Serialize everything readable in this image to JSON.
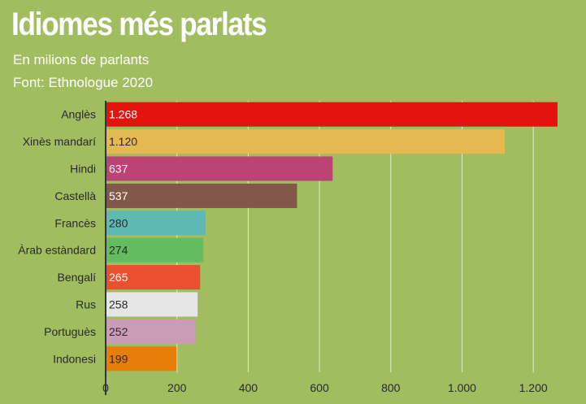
{
  "header": {
    "title": "Idiomes més parlats",
    "subtitle": "En milions de parlants",
    "source": "Font: Ethnologue 2020"
  },
  "chart_data": {
    "type": "bar",
    "orientation": "horizontal",
    "title": "Idiomes més parlats",
    "subtitle": "En milions de parlants",
    "xlabel": "",
    "ylabel": "",
    "xlim": [
      0,
      1300
    ],
    "xticks": [
      0,
      200,
      400,
      600,
      800,
      1000,
      1200
    ],
    "xtick_labels": [
      "0",
      "200",
      "400",
      "600",
      "800",
      "1.000",
      "1.200"
    ],
    "grid": true,
    "categories": [
      "Anglès",
      "Xinès mandarí",
      "Hindi",
      "Castellà",
      "Francès",
      "Àrab estàndard",
      "Bengalí",
      "Rus",
      "Portuguès",
      "Indonesi"
    ],
    "values": [
      1268,
      1120,
      637,
      537,
      280,
      274,
      265,
      258,
      252,
      199
    ],
    "value_labels": [
      "1.268",
      "1.120",
      "637",
      "537",
      "280",
      "274",
      "265",
      "258",
      "252",
      "199"
    ],
    "colors": [
      "#e3140e",
      "#e4b951",
      "#bc4475",
      "#82584a",
      "#5fb9b5",
      "#65bb60",
      "#e9502f",
      "#e6e6e6",
      "#cb9cb8",
      "#e87e07"
    ],
    "label_colors": [
      "#ffffff",
      "#2a2a2a",
      "#ffffff",
      "#ffffff",
      "#2a2a2a",
      "#2a2a2a",
      "#ffffff",
      "#2a2a2a",
      "#2a2a2a",
      "#2a2a2a"
    ]
  }
}
